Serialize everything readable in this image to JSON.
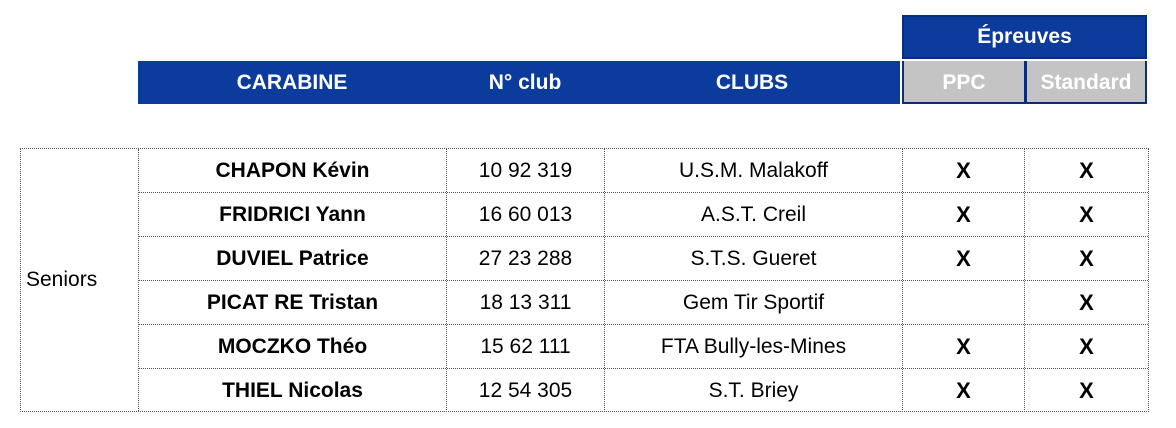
{
  "header": {
    "epreuves": "Épreuves",
    "carabine": "CARABINE",
    "club_number": "N° club",
    "clubs": "CLUBS",
    "ppc": "PPC",
    "standard": "Standard"
  },
  "colors": {
    "header_blue": "#0b3b9c",
    "subheader_gray": "#c4c4c4"
  },
  "category": "Seniors",
  "rows": [
    {
      "name": "CHAPON Kévin",
      "club_number": "10 92 319",
      "club": "U.S.M. Malakoff",
      "ppc": "X",
      "standard": "X"
    },
    {
      "name": "FRIDRICI Yann",
      "club_number": "16 60 013",
      "club": "A.S.T. Creil",
      "ppc": "X",
      "standard": "X"
    },
    {
      "name": "DUVIEL Patrice",
      "club_number": "27 23 288",
      "club": "S.T.S. Gueret",
      "ppc": "X",
      "standard": "X"
    },
    {
      "name": "PICAT RE Tristan",
      "club_number": "18 13 311",
      "club": "Gem Tir Sportif",
      "ppc": "",
      "standard": "X"
    },
    {
      "name": "MOCZKO Théo",
      "club_number": "15 62 111",
      "club": "FTA Bully-les-Mines",
      "ppc": "X",
      "standard": "X"
    },
    {
      "name": "THIEL Nicolas",
      "club_number": "12 54 305",
      "club": "S.T. Briey",
      "ppc": "X",
      "standard": "X"
    }
  ]
}
